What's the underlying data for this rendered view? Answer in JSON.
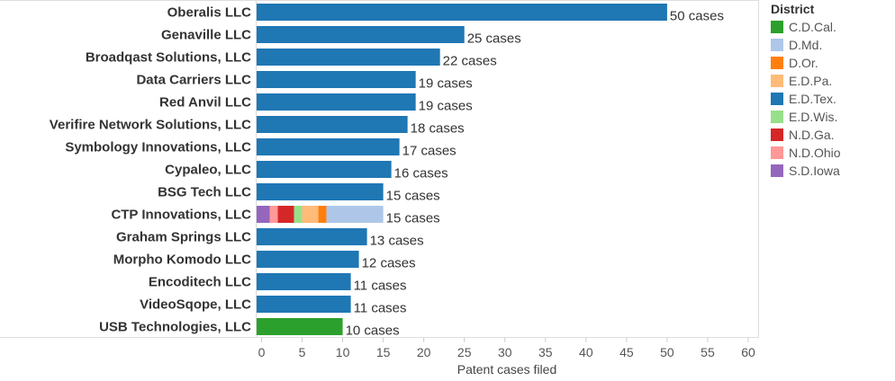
{
  "chart_data": {
    "type": "bar",
    "orientation": "horizontal",
    "stacked": true,
    "xlabel": "Patent cases filed",
    "ylabel": "",
    "xlim": [
      0,
      60
    ],
    "xticks": [
      0,
      5,
      10,
      15,
      20,
      25,
      30,
      35,
      40,
      45,
      50,
      55,
      60
    ],
    "grid": false,
    "label_suffix": " cases",
    "legend": {
      "title": "District",
      "placement": "right",
      "entries": [
        {
          "name": "C.D.Cal.",
          "color": "#2ca02c"
        },
        {
          "name": "D.Md.",
          "color": "#aec7e8"
        },
        {
          "name": "D.Or.",
          "color": "#ff7f0e"
        },
        {
          "name": "E.D.Pa.",
          "color": "#ffbb78"
        },
        {
          "name": "E.D.Tex.",
          "color": "#1f77b4"
        },
        {
          "name": "E.D.Wis.",
          "color": "#98df8a"
        },
        {
          "name": "N.D.Ga.",
          "color": "#d62728"
        },
        {
          "name": "N.D.Ohio",
          "color": "#ff9896"
        },
        {
          "name": "S.D.Iowa",
          "color": "#9467bd"
        }
      ]
    },
    "categories": [
      "Oberalis LLC",
      "Genaville LLC",
      "Broadqast Solutions, LLC",
      "Data Carriers LLC",
      "Red Anvil LLC",
      "Verifire Network Solutions, LLC",
      "Symbology Innovations, LLC",
      "Cypaleo, LLC",
      "BSG Tech LLC",
      "CTP Innovations, LLC",
      "Graham Springs LLC",
      "Morpho Komodo LLC",
      "Encoditech LLC",
      "VideoSqope, LLC",
      "USB Technologies, LLC"
    ],
    "totals": [
      50,
      25,
      22,
      19,
      19,
      18,
      17,
      16,
      15,
      15,
      13,
      12,
      11,
      11,
      10
    ],
    "segments": [
      [
        {
          "district": "E.D.Tex.",
          "value": 50
        }
      ],
      [
        {
          "district": "E.D.Tex.",
          "value": 25
        }
      ],
      [
        {
          "district": "E.D.Tex.",
          "value": 22
        }
      ],
      [
        {
          "district": "E.D.Tex.",
          "value": 19
        }
      ],
      [
        {
          "district": "E.D.Tex.",
          "value": 19
        }
      ],
      [
        {
          "district": "E.D.Tex.",
          "value": 18
        }
      ],
      [
        {
          "district": "E.D.Tex.",
          "value": 17
        }
      ],
      [
        {
          "district": "E.D.Tex.",
          "value": 16
        }
      ],
      [
        {
          "district": "E.D.Tex.",
          "value": 15
        }
      ],
      [
        {
          "district": "S.D.Iowa",
          "value": 1
        },
        {
          "district": "N.D.Ohio",
          "value": 1
        },
        {
          "district": "N.D.Ga.",
          "value": 2
        },
        {
          "district": "E.D.Wis.",
          "value": 1
        },
        {
          "district": "E.D.Pa.",
          "value": 2
        },
        {
          "district": "D.Or.",
          "value": 1
        },
        {
          "district": "D.Md.",
          "value": 7
        }
      ],
      [
        {
          "district": "E.D.Tex.",
          "value": 13
        }
      ],
      [
        {
          "district": "E.D.Tex.",
          "value": 12
        }
      ],
      [
        {
          "district": "E.D.Tex.",
          "value": 11
        }
      ],
      [
        {
          "district": "E.D.Tex.",
          "value": 11
        }
      ],
      [
        {
          "district": "C.D.Cal.",
          "value": 10
        }
      ]
    ]
  }
}
